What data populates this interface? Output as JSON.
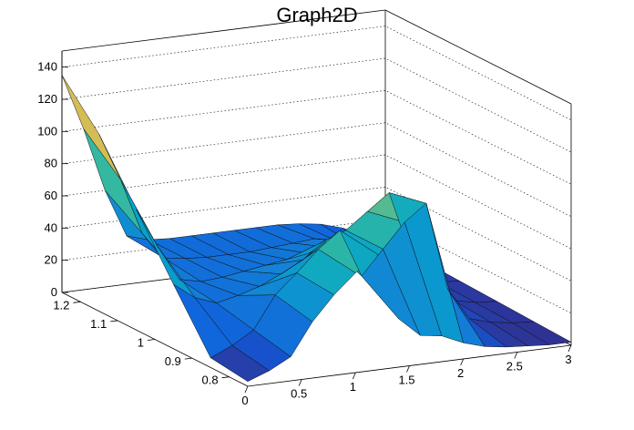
{
  "chart_data": {
    "type": "surface",
    "title": "Graph2D",
    "xlim": [
      0,
      3
    ],
    "ylim": [
      0.75,
      1.25
    ],
    "zlim": [
      0,
      150
    ],
    "x_ticks": [
      "0",
      "0.5",
      "1",
      "1.5",
      "2",
      "2.5",
      "3"
    ],
    "y_ticks": [
      "0.8",
      "0.9",
      "1",
      "1.1",
      "1.2"
    ],
    "z_ticks": [
      "0",
      "20",
      "40",
      "60",
      "80",
      "100",
      "120",
      "140"
    ],
    "x_grid": [
      0.0,
      0.2,
      0.4,
      0.6,
      0.8,
      1.0,
      1.2,
      1.4,
      1.6,
      1.8,
      2.0,
      2.2,
      2.4,
      2.6,
      2.8,
      3.0
    ],
    "y_grid": [
      0.75,
      0.85,
      0.95,
      1.05,
      1.15,
      1.25
    ],
    "z": [
      [
        3,
        8,
        15,
        35,
        50,
        62,
        72,
        30,
        18,
        16,
        10,
        6,
        4,
        3,
        2,
        2
      ],
      [
        6,
        12,
        20,
        40,
        52,
        65,
        75,
        45,
        60,
        75,
        85,
        30,
        10,
        6,
        4,
        3
      ],
      [
        40,
        30,
        25,
        28,
        32,
        38,
        45,
        55,
        60,
        70,
        80,
        40,
        15,
        8,
        5,
        4
      ],
      [
        75,
        50,
        28,
        25,
        26,
        28,
        30,
        32,
        34,
        36,
        38,
        30,
        18,
        10,
        6,
        5
      ],
      [
        110,
        80,
        45,
        28,
        26,
        25,
        25,
        25,
        26,
        27,
        28,
        25,
        20,
        14,
        8,
        6
      ],
      [
        135,
        100,
        60,
        30,
        26,
        25,
        25,
        25,
        25,
        25,
        25,
        24,
        22,
        18,
        12,
        8
      ]
    ],
    "colormap": [
      "#352a87",
      "#0f5cdd",
      "#1481d6",
      "#06a4ca",
      "#2eb7a4",
      "#87bf77",
      "#d1bb59",
      "#fec832",
      "#f9fb0e"
    ],
    "grid": true
  }
}
